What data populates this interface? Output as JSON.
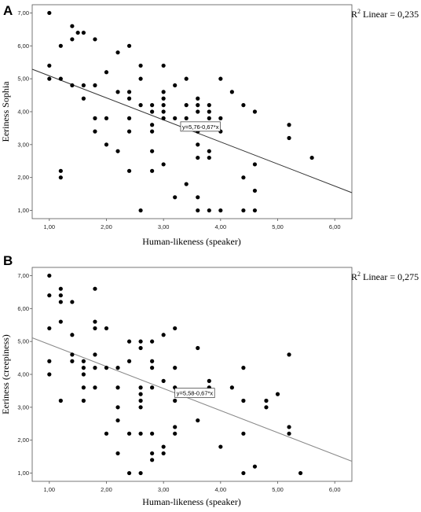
{
  "chart_data": [
    {
      "panel": "A",
      "type": "scatter",
      "xlabel": "Human-likeness (speaker)",
      "ylabel": "Eeriness Sophia",
      "r2_prefix": "R",
      "r2_sup": "2",
      "r2_text": "Linear = 0,235",
      "equation": "y=5,76-0,67*x",
      "fit": {
        "intercept": 5.76,
        "slope": -0.67
      },
      "xlim": [
        0.7,
        6.3
      ],
      "ylim": [
        0.75,
        7.25
      ],
      "x_ticks": [
        1,
        2,
        3,
        4,
        5,
        6
      ],
      "x_tick_labels": [
        "1,00",
        "2,00",
        "3,00",
        "4,00",
        "5,00",
        "6,00"
      ],
      "y_ticks": [
        1,
        2,
        3,
        4,
        5,
        6,
        7
      ],
      "y_tick_labels": [
        "1,00",
        "2,00",
        "3,00",
        "4,00",
        "5,00",
        "6,00",
        "7,00"
      ],
      "grid": false,
      "line_color": "#333333",
      "point_color": "#000000",
      "points": [
        [
          1.0,
          7.0
        ],
        [
          1.0,
          5.4
        ],
        [
          1.0,
          5.0
        ],
        [
          1.2,
          6.0
        ],
        [
          1.2,
          5.0
        ],
        [
          1.2,
          2.2
        ],
        [
          1.2,
          2.0
        ],
        [
          1.4,
          6.6
        ],
        [
          1.4,
          6.2
        ],
        [
          1.4,
          4.8
        ],
        [
          1.5,
          6.4
        ],
        [
          1.6,
          6.4
        ],
        [
          1.6,
          4.8
        ],
        [
          1.6,
          4.4
        ],
        [
          1.8,
          6.2
        ],
        [
          1.8,
          4.8
        ],
        [
          1.8,
          3.8
        ],
        [
          1.8,
          3.4
        ],
        [
          2.0,
          5.2
        ],
        [
          2.0,
          3.8
        ],
        [
          2.0,
          3.0
        ],
        [
          2.2,
          5.8
        ],
        [
          2.2,
          4.6
        ],
        [
          2.2,
          2.8
        ],
        [
          2.4,
          6.0
        ],
        [
          2.4,
          4.6
        ],
        [
          2.4,
          4.4
        ],
        [
          2.4,
          3.8
        ],
        [
          2.4,
          3.4
        ],
        [
          2.4,
          2.2
        ],
        [
          2.6,
          5.4
        ],
        [
          2.6,
          5.0
        ],
        [
          2.6,
          4.2
        ],
        [
          2.6,
          1.0
        ],
        [
          2.8,
          4.2
        ],
        [
          2.8,
          4.0
        ],
        [
          2.8,
          3.6
        ],
        [
          2.8,
          3.4
        ],
        [
          2.8,
          2.8
        ],
        [
          2.8,
          2.2
        ],
        [
          3.0,
          5.4
        ],
        [
          3.0,
          4.6
        ],
        [
          3.0,
          4.4
        ],
        [
          3.0,
          4.2
        ],
        [
          3.0,
          4.0
        ],
        [
          3.0,
          3.8
        ],
        [
          3.0,
          2.4
        ],
        [
          3.2,
          4.8
        ],
        [
          3.2,
          3.8
        ],
        [
          3.2,
          1.4
        ],
        [
          3.4,
          5.0
        ],
        [
          3.4,
          4.2
        ],
        [
          3.4,
          3.8
        ],
        [
          3.4,
          1.8
        ],
        [
          3.6,
          4.4
        ],
        [
          3.6,
          4.2
        ],
        [
          3.6,
          4.0
        ],
        [
          3.6,
          3.6
        ],
        [
          3.6,
          3.4
        ],
        [
          3.6,
          3.0
        ],
        [
          3.6,
          2.6
        ],
        [
          3.6,
          1.4
        ],
        [
          3.6,
          1.0
        ],
        [
          3.8,
          4.2
        ],
        [
          3.8,
          4.0
        ],
        [
          3.8,
          3.8
        ],
        [
          3.8,
          2.8
        ],
        [
          3.8,
          2.6
        ],
        [
          3.8,
          1.0
        ],
        [
          4.0,
          5.0
        ],
        [
          4.0,
          3.8
        ],
        [
          4.0,
          3.4
        ],
        [
          4.0,
          1.0
        ],
        [
          4.2,
          4.6
        ],
        [
          4.4,
          4.2
        ],
        [
          4.4,
          2.0
        ],
        [
          4.4,
          1.0
        ],
        [
          4.6,
          4.0
        ],
        [
          4.6,
          2.4
        ],
        [
          4.6,
          1.6
        ],
        [
          4.6,
          1.0
        ],
        [
          5.2,
          3.6
        ],
        [
          5.2,
          3.2
        ],
        [
          5.6,
          2.6
        ]
      ]
    },
    {
      "panel": "B",
      "type": "scatter",
      "xlabel": "Human-likeness (speaker)",
      "ylabel": "Eeriness (creepiness)",
      "r2_prefix": "R",
      "r2_sup": "2",
      "r2_text": "Linear = 0,275",
      "equation": "y=5,58-0,67*x",
      "fit": {
        "intercept": 5.58,
        "slope": -0.67
      },
      "xlim": [
        0.7,
        6.3
      ],
      "ylim": [
        0.75,
        7.25
      ],
      "x_ticks": [
        1,
        2,
        3,
        4,
        5,
        6
      ],
      "x_tick_labels": [
        "1,00",
        "2,00",
        "3,00",
        "4,00",
        "5,00",
        "6,00"
      ],
      "y_ticks": [
        1,
        2,
        3,
        4,
        5,
        6,
        7
      ],
      "y_tick_labels": [
        "1,00",
        "2,00",
        "3,00",
        "4,00",
        "5,00",
        "6,00",
        "7,00"
      ],
      "grid": false,
      "line_color": "#888888",
      "point_color": "#000000",
      "points": [
        [
          1.0,
          7.0
        ],
        [
          1.0,
          6.4
        ],
        [
          1.0,
          5.4
        ],
        [
          1.0,
          4.4
        ],
        [
          1.0,
          4.0
        ],
        [
          1.2,
          6.6
        ],
        [
          1.2,
          6.4
        ],
        [
          1.2,
          6.2
        ],
        [
          1.2,
          5.6
        ],
        [
          1.2,
          3.2
        ],
        [
          1.4,
          6.2
        ],
        [
          1.4,
          5.2
        ],
        [
          1.4,
          4.6
        ],
        [
          1.4,
          4.4
        ],
        [
          1.6,
          4.2
        ],
        [
          1.6,
          4.0
        ],
        [
          1.6,
          3.6
        ],
        [
          1.6,
          3.2
        ],
        [
          1.8,
          6.6
        ],
        [
          1.8,
          5.6
        ],
        [
          1.8,
          5.4
        ],
        [
          1.8,
          4.6
        ],
        [
          1.8,
          4.2
        ],
        [
          1.8,
          3.6
        ],
        [
          2.0,
          5.4
        ],
        [
          2.0,
          4.2
        ],
        [
          2.0,
          2.2
        ],
        [
          2.2,
          3.6
        ],
        [
          2.2,
          3.0
        ],
        [
          2.2,
          2.6
        ],
        [
          2.2,
          1.6
        ],
        [
          2.4,
          5.0
        ],
        [
          2.4,
          4.4
        ],
        [
          2.4,
          2.2
        ],
        [
          2.4,
          1.0
        ],
        [
          2.6,
          5.0
        ],
        [
          2.6,
          4.8
        ],
        [
          2.6,
          3.6
        ],
        [
          2.6,
          3.4
        ],
        [
          2.6,
          3.2
        ],
        [
          2.6,
          3.0
        ],
        [
          2.6,
          2.2
        ],
        [
          2.6,
          1.0
        ],
        [
          2.8,
          5.0
        ],
        [
          2.8,
          4.4
        ],
        [
          2.8,
          4.2
        ],
        [
          2.8,
          3.6
        ],
        [
          2.8,
          2.2
        ],
        [
          2.8,
          1.6
        ],
        [
          2.8,
          1.4
        ],
        [
          3.0,
          5.2
        ],
        [
          3.0,
          3.8
        ],
        [
          3.0,
          1.8
        ],
        [
          3.0,
          1.6
        ],
        [
          3.2,
          5.4
        ],
        [
          3.2,
          4.2
        ],
        [
          3.2,
          3.6
        ],
        [
          3.2,
          2.4
        ],
        [
          3.2,
          2.2
        ],
        [
          3.6,
          4.8
        ],
        [
          3.6,
          2.6
        ],
        [
          3.8,
          3.8
        ],
        [
          3.8,
          3.6
        ],
        [
          4.0,
          1.8
        ],
        [
          4.4,
          4.2
        ],
        [
          4.4,
          2.2
        ],
        [
          4.4,
          1.0
        ],
        [
          4.6,
          1.2
        ],
        [
          4.8,
          3.2
        ],
        [
          4.8,
          3.0
        ],
        [
          5.0,
          3.4
        ],
        [
          5.2,
          4.6
        ],
        [
          5.2,
          2.4
        ],
        [
          5.2,
          2.2
        ],
        [
          5.4,
          1.0
        ],
        [
          3.2,
          3.2
        ],
        [
          4.4,
          3.2
        ],
        [
          4.2,
          3.6
        ],
        [
          2.2,
          4.2
        ],
        [
          1.6,
          4.4
        ]
      ]
    }
  ]
}
